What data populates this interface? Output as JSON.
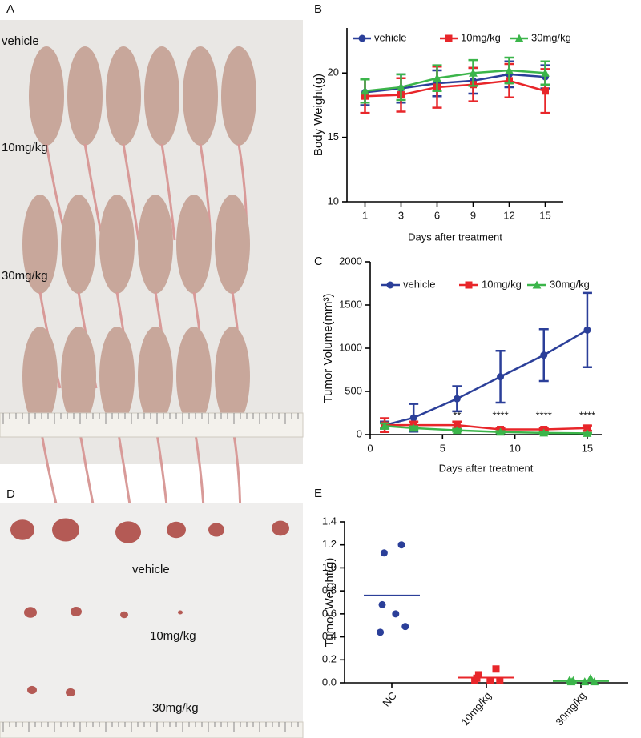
{
  "photos": [
    {
      "label": "A",
      "texts": [
        "vehicle",
        "10mg/kg",
        "30mg/kg"
      ]
    },
    {
      "label": "D",
      "texts": [
        "vehicle",
        "10mg/kg",
        "30mg/kg"
      ]
    }
  ],
  "chart_data": [
    {
      "type": "line",
      "panel": "B",
      "xlabel": "Days after treatment",
      "ylabel": "Body Weight(g)",
      "categories": [
        "1",
        "3",
        "6",
        "9",
        "12",
        "15"
      ],
      "ylim": [
        10,
        23.5
      ],
      "yticks": [
        10,
        15,
        20
      ],
      "series": [
        {
          "name": "vehicle",
          "color": "#2b3f99",
          "marker": "circle",
          "values": [
            18.5,
            18.8,
            19.2,
            19.4,
            19.9,
            19.7
          ],
          "errors": [
            1.0,
            1.1,
            1.0,
            1.0,
            1.0,
            0.9
          ]
        },
        {
          "name": "10mg/kg",
          "color": "#e8262a",
          "marker": "square",
          "values": [
            18.2,
            18.3,
            18.9,
            19.1,
            19.4,
            18.6
          ],
          "errors": [
            1.3,
            1.3,
            1.6,
            1.3,
            1.3,
            1.7
          ]
        },
        {
          "name": "30mg/kg",
          "color": "#3bb54a",
          "marker": "triangle",
          "values": [
            18.6,
            18.9,
            19.6,
            20.0,
            20.2,
            20.0
          ],
          "errors": [
            0.9,
            1.0,
            1.0,
            1.0,
            1.0,
            0.9
          ]
        }
      ]
    },
    {
      "type": "line",
      "panel": "C",
      "xlabel": "Days after treatment",
      "ylabel": "Tumor Volume(mm³)",
      "x": [
        1,
        3,
        6,
        9,
        12,
        15
      ],
      "xlim": [
        0,
        16
      ],
      "xticks": [
        0,
        5,
        10,
        15
      ],
      "ylim": [
        0,
        2000
      ],
      "yticks": [
        0,
        500,
        1000,
        1500,
        2000
      ],
      "series": [
        {
          "name": "vehicle",
          "color": "#2b3f99",
          "marker": "circle",
          "values": [
            110,
            195,
            415,
            670,
            920,
            1210
          ],
          "errors": [
            40,
            160,
            145,
            300,
            300,
            430
          ]
        },
        {
          "name": "10mg/kg",
          "color": "#e8262a",
          "marker": "square",
          "values": [
            110,
            110,
            110,
            60,
            60,
            75
          ],
          "errors": [
            80,
            40,
            40,
            20,
            20,
            30
          ]
        },
        {
          "name": "30mg/kg",
          "color": "#3bb54a",
          "marker": "triangle",
          "values": [
            100,
            75,
            50,
            30,
            20,
            15
          ],
          "errors": [
            30,
            20,
            15,
            10,
            8,
            5
          ]
        }
      ],
      "annotations": [
        {
          "x": 6,
          "text": "**"
        },
        {
          "x": 9,
          "text": "****"
        },
        {
          "x": 12,
          "text": "****"
        },
        {
          "x": 15,
          "text": "****"
        }
      ]
    },
    {
      "type": "scatter",
      "panel": "E",
      "ylabel": "Tumor Weight(g)",
      "categories": [
        "NC",
        "10mg/kg",
        "30mg/kg"
      ],
      "ylim": [
        0,
        1.4
      ],
      "yticks": [
        {
          "value": 0,
          "label": "0.0"
        },
        0.2,
        0.4,
        0.6,
        0.8,
        {
          "value": 1,
          "label": "1.0"
        },
        1.2,
        1.4
      ],
      "series": [
        {
          "color": "#2b3f99",
          "marker": "circle",
          "values": [
            1.2,
            1.13,
            0.68,
            0.6,
            0.49,
            0.44
          ],
          "mean": 0.76
        },
        {
          "color": "#e8262a",
          "marker": "square",
          "values": [
            0.12,
            0.07,
            0.04,
            0.02,
            0.02,
            0.02
          ],
          "mean": 0.045
        },
        {
          "color": "#3bb54a",
          "marker": "triangle",
          "values": [
            0.04,
            0.02,
            0.01,
            0.01,
            0.01,
            0.02
          ],
          "mean": 0.015
        }
      ]
    }
  ]
}
